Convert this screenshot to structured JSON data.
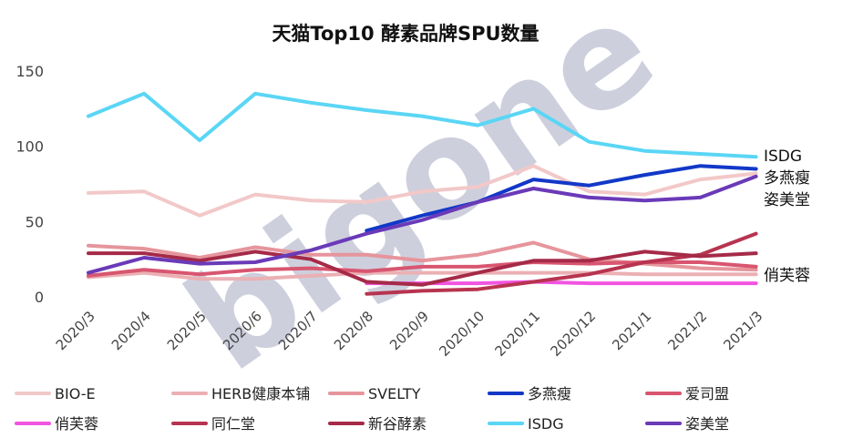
{
  "chart_data": {
    "type": "line",
    "title": "天猫Top10 酵素品牌SPU数量",
    "watermark": "bigone",
    "categories": [
      "2020/3",
      "2020/4",
      "2020/5",
      "2020/6",
      "2020/7",
      "2020/8",
      "2020/9",
      "2020/10",
      "2020/11",
      "2020/12",
      "2021/1",
      "2021/2",
      "2021/3"
    ],
    "ylim": [
      0,
      160
    ],
    "yticks": [
      0,
      50,
      100,
      150
    ],
    "grid": false,
    "legend": "bottom",
    "series": [
      {
        "name": "BIO-E",
        "color": "#f2c8c8",
        "values": [
          69,
          70,
          54,
          68,
          64,
          63,
          70,
          73,
          87,
          70,
          68,
          78,
          82
        ]
      },
      {
        "name": "HERB健康本铺",
        "color": "#ebb0b4",
        "values": [
          13,
          16,
          12,
          12,
          14,
          16,
          16,
          16,
          16,
          16,
          15,
          15,
          15
        ]
      },
      {
        "name": "SVELTY",
        "color": "#e6959c",
        "values": [
          34,
          32,
          26,
          33,
          28,
          28,
          24,
          28,
          36,
          25,
          22,
          19,
          18
        ]
      },
      {
        "name": "多燕瘦",
        "color": "#1238c8",
        "values": [
          null,
          null,
          null,
          null,
          null,
          44,
          54,
          63,
          78,
          74,
          81,
          87,
          85
        ]
      },
      {
        "name": "爱司盟",
        "color": "#d85670",
        "values": [
          14,
          18,
          15,
          18,
          19,
          17,
          20,
          20,
          23,
          22,
          23,
          23,
          20
        ]
      },
      {
        "name": "俏芙蓉",
        "color": "#f154e0",
        "values": [
          null,
          null,
          null,
          null,
          null,
          9,
          9,
          9,
          10,
          9,
          9,
          9,
          9
        ]
      },
      {
        "name": "同仁堂",
        "color": "#b73450",
        "values": [
          null,
          null,
          null,
          null,
          null,
          2,
          4,
          5,
          10,
          15,
          23,
          28,
          42
        ]
      },
      {
        "name": "新谷酵素",
        "color": "#a52a48",
        "values": [
          29,
          29,
          24,
          30,
          25,
          10,
          8,
          16,
          24,
          24,
          30,
          27,
          29
        ]
      },
      {
        "name": "ISDG",
        "color": "#5ad6f5",
        "values": [
          120,
          135,
          104,
          135,
          129,
          124,
          120,
          114,
          125,
          103,
          97,
          95,
          93
        ]
      },
      {
        "name": "姿美堂",
        "color": "#6a3ab8",
        "values": [
          16,
          26,
          22,
          23,
          31,
          42,
          51,
          63,
          72,
          66,
          64,
          66,
          80
        ]
      }
    ],
    "end_labels": [
      {
        "text": "ISDG",
        "series": "ISDG"
      },
      {
        "text": "多燕瘦",
        "series": "多燕瘦"
      },
      {
        "text": "姿美堂",
        "series": "姿美堂"
      },
      {
        "text": "俏芙蓉",
        "series": "俏芙蓉"
      }
    ]
  }
}
